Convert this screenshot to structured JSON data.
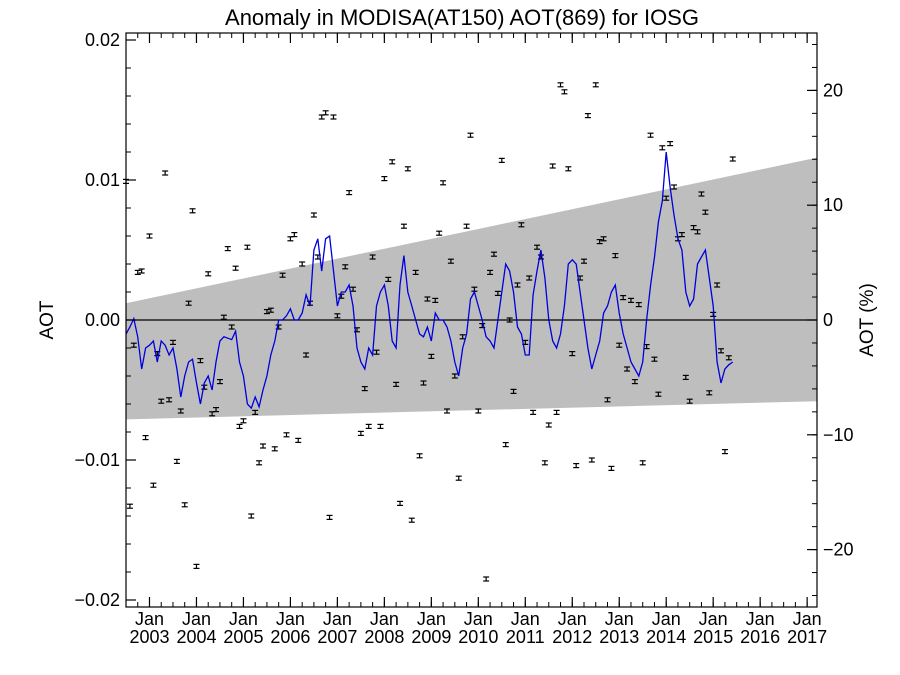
{
  "chart_data": {
    "type": "scatter",
    "title": "Anomaly in MODISA(AT150) AOT(869) for IOSG",
    "ylabel": "AOT",
    "y2label": "AOT (%)",
    "ylim": [
      -0.0205,
      0.0205
    ],
    "y2lim": [
      -25,
      25
    ],
    "yticks": [
      -0.02,
      -0.01,
      0.0,
      0.01,
      0.02
    ],
    "ytick_labels": [
      "−0.02",
      "−0.01",
      "0.00",
      "0.01",
      "0.02"
    ],
    "y2ticks": [
      -20,
      -10,
      0,
      10,
      20
    ],
    "y2tick_labels": [
      "−20",
      "−10",
      "0",
      "10",
      "20"
    ],
    "xlim": [
      2002.5,
      2017.21
    ],
    "xticks": [
      2003,
      2004,
      2005,
      2006,
      2007,
      2008,
      2009,
      2010,
      2011,
      2012,
      2013,
      2014,
      2015,
      2016,
      2017
    ],
    "xtick_month_label": "Jan",
    "xtick_year_labels": [
      "2003",
      "2004",
      "2005",
      "2006",
      "2007",
      "2008",
      "2009",
      "2010",
      "2011",
      "2012",
      "2013",
      "2014",
      "2015",
      "2016",
      "2017"
    ],
    "zero_line": 0,
    "band": {
      "x": [
        2002.5,
        2017.21
      ],
      "upper": [
        0.0012,
        0.0116
      ],
      "lower": [
        -0.0071,
        -0.0058
      ],
      "color": "#bebebe"
    },
    "smooth_line_color": "#0000dd",
    "marker_color": "#000000",
    "series": [
      {
        "x_start": 2002.5,
        "x_step": 0.0833333,
        "values": [
          0.0099,
          -0.0133,
          -0.0018,
          0.0034,
          0.0035,
          -0.0084,
          0.006,
          -0.0118,
          -0.0024,
          -0.0058,
          0.0105,
          -0.0057,
          -0.0016,
          -0.0101,
          -0.0065,
          -0.0132,
          0.0012,
          0.0078,
          -0.0176,
          -0.0029,
          -0.0048,
          0.0033,
          -0.0067,
          -0.0064,
          -0.0044,
          0.0002,
          0.0051,
          -0.0005,
          0.0037,
          -0.0076,
          -0.0072,
          0.0052,
          -0.014,
          -0.0066,
          -0.0102,
          -0.009,
          0.0006,
          0.0007,
          -0.0092,
          -0.0005,
          0.0032,
          -0.0082,
          0.0058,
          0.0061,
          -0.0086,
          0.004,
          -0.0025,
          0.0012,
          0.0075,
          0.0045,
          0.0145,
          0.0148,
          -0.0141,
          0.0145,
          0.0003,
          0.0017,
          0.0038,
          0.0091,
          0.0022,
          -0.0007,
          -0.0081,
          -0.0049,
          -0.0076,
          0.0045,
          -0.0023,
          -0.0076,
          0.0101,
          0.0029,
          0.0113,
          -0.0046,
          -0.0131,
          0.0067,
          0.0108,
          -0.0143,
          0.0034,
          -0.0097,
          -0.0045,
          0.0015,
          -0.0026,
          0.0014,
          0.0062,
          0.0098,
          -0.0065,
          0.0042,
          -0.004,
          -0.0113,
          -0.0012,
          0.0067,
          0.0132,
          0.0022,
          -0.0065,
          -0.0004,
          -0.0185,
          0.0034,
          0.0047,
          0.0019,
          0.0114,
          -0.0089,
          0.0,
          -0.0051,
          0.0025,
          0.0068,
          -0.0016,
          0.003,
          -0.0066,
          0.0052,
          0.0045,
          -0.0102,
          -0.0075,
          0.011,
          -0.0066,
          0.0168,
          0.0163,
          0.0108,
          -0.0024,
          -0.0104,
          0.003,
          0.0042,
          0.0146,
          -0.01,
          0.0168,
          0.0056,
          0.0058,
          -0.0057,
          -0.0106,
          0.0046,
          -0.0018,
          0.0016,
          -0.0035,
          0.0014,
          -0.0044,
          0.0011,
          -0.0102,
          -0.0019,
          0.0132,
          -0.0028,
          -0.0053,
          0.0123,
          0.0087,
          0.0126,
          0.0095,
          0.0058,
          0.0061,
          -0.0041,
          -0.0058,
          0.0066,
          0.0063,
          0.009,
          0.0077,
          -0.0052,
          0.0004,
          0.0025,
          -0.0022,
          -0.0094,
          -0.0027,
          0.0115
        ]
      },
      {
        "x_start": 2002.5,
        "x_step": 0.0833333,
        "values": [
          -0.001,
          -0.0005,
          0.0001,
          -0.0012,
          -0.0035,
          -0.002,
          -0.0018,
          -0.0015,
          -0.003,
          -0.0015,
          -0.0018,
          -0.0025,
          -0.002,
          -0.0035,
          -0.0055,
          -0.004,
          -0.003,
          -0.0028,
          -0.0045,
          -0.006,
          -0.0045,
          -0.004,
          -0.005,
          -0.003,
          -0.0015,
          -0.0012,
          -0.0013,
          -0.0014,
          -0.0008,
          -0.003,
          -0.004,
          -0.006,
          -0.0063,
          -0.0055,
          -0.0062,
          -0.005,
          -0.004,
          -0.0025,
          -0.0015,
          0.0,
          0.0,
          0.0003,
          0.0008,
          0.0,
          0.0,
          0.0005,
          0.0018,
          0.001,
          0.005,
          0.0058,
          0.0035,
          0.0058,
          0.006,
          0.0035,
          0.001,
          0.002,
          0.002,
          0.0025,
          0.001,
          -0.002,
          -0.003,
          -0.0035,
          -0.002,
          -0.0025,
          0.001,
          0.002,
          0.0025,
          0.001,
          -0.0015,
          -0.002,
          0.0025,
          0.0046,
          0.002,
          0.001,
          0.0,
          -0.001,
          -0.0012,
          -0.0005,
          -0.0015,
          0.0005,
          0.0,
          0.0,
          -0.0005,
          -0.0015,
          -0.003,
          -0.004,
          -0.002,
          -0.001,
          0.0015,
          0.002,
          0.001,
          0.0,
          -0.0012,
          -0.0015,
          -0.002,
          0.0,
          0.002,
          0.004,
          0.0035,
          0.002,
          -0.0005,
          -0.001,
          -0.0025,
          -0.0025,
          0.0018,
          0.0035,
          0.005,
          0.003,
          0.0,
          -0.0015,
          -0.002,
          -0.001,
          0.001,
          0.004,
          0.0043,
          0.004,
          0.002,
          0.0,
          -0.002,
          -0.0035,
          -0.0025,
          -0.0015,
          0.0005,
          0.001,
          0.002,
          0.0025,
          0.0005,
          -0.001,
          -0.002,
          -0.003,
          -0.0035,
          -0.004,
          -0.003,
          0.0,
          0.0025,
          0.0045,
          0.007,
          0.0085,
          0.012,
          0.0095,
          0.0075,
          0.0058,
          0.005,
          0.002,
          0.001,
          0.0015,
          0.004,
          0.0045,
          0.005,
          0.003,
          0.001,
          -0.003,
          -0.0045,
          -0.0035,
          -0.0032,
          -0.003
        ]
      }
    ]
  }
}
